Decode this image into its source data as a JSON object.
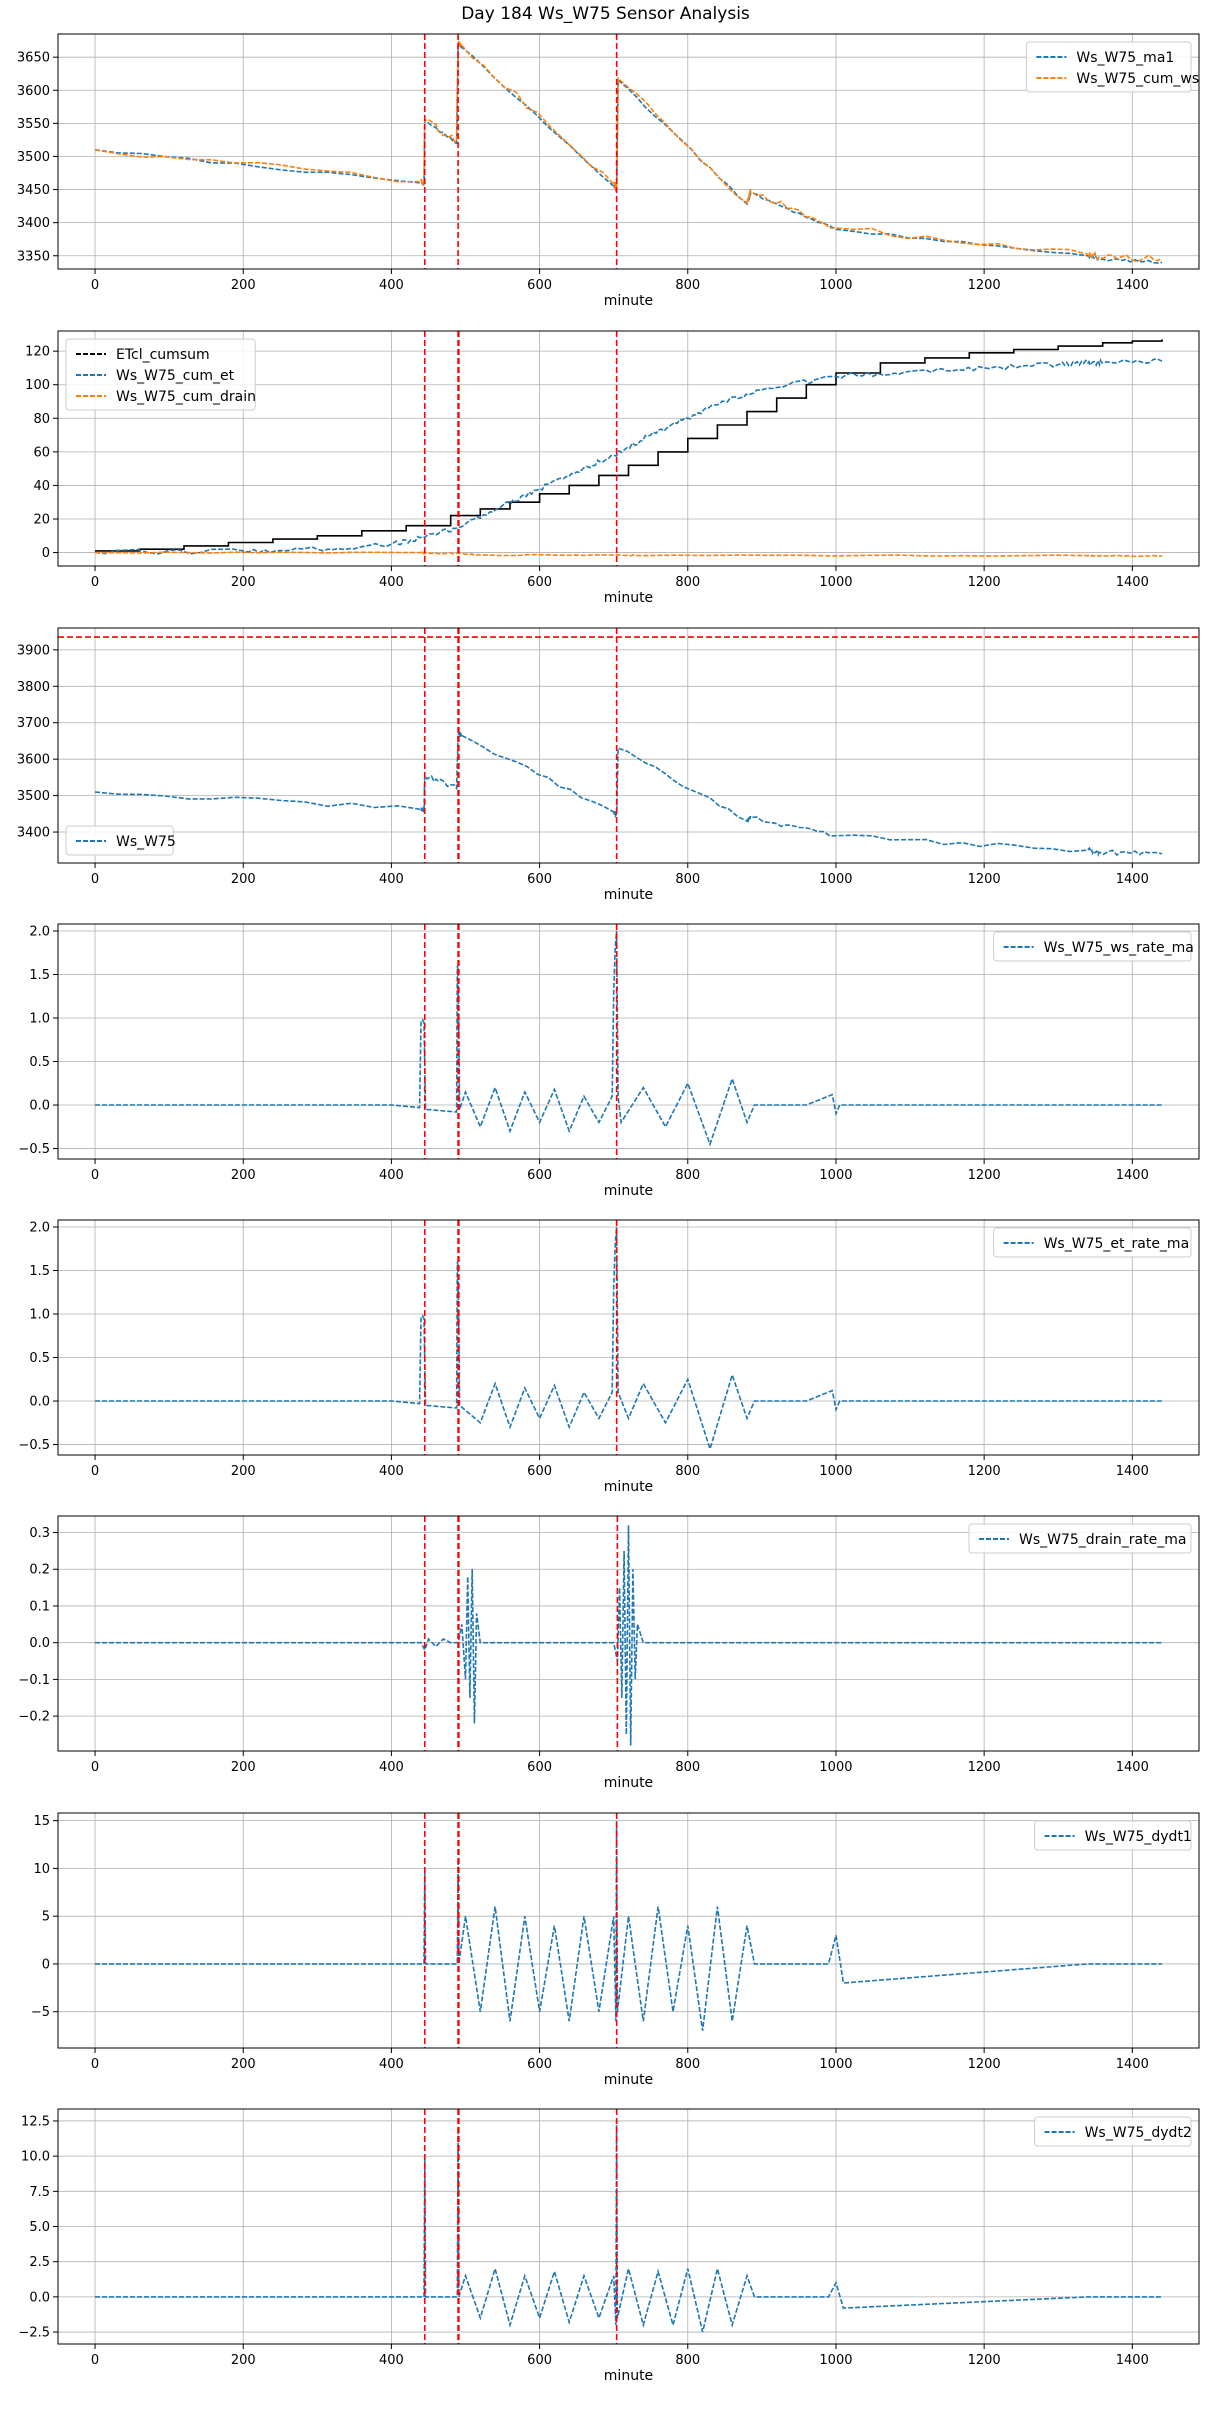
{
  "figure_title": "Day 184 Ws_W75 Sensor Analysis",
  "colors": {
    "blue": "#1f77b4",
    "orange": "#ff7f0e",
    "black": "#000000",
    "red": "#ff0000",
    "grid": "#b0b0b0"
  },
  "chart_data": [
    {
      "type": "line",
      "xlabel": "minute",
      "xlim": [
        -50,
        1490
      ],
      "ylim": [
        3330,
        3685
      ],
      "xticks": [
        0,
        200,
        400,
        600,
        800,
        1000,
        1200,
        1400
      ],
      "yticks": [
        3350,
        3400,
        3450,
        3500,
        3550,
        3600,
        3650
      ],
      "legend_loc": "top-right",
      "vlines": [
        445,
        490,
        704
      ],
      "hlines": [],
      "series": [
        {
          "name": "Ws_W75_ma1",
          "color": "#1f77b4",
          "noise": 2,
          "x": [
            0,
            440,
            444,
            445,
            488,
            490,
            495,
            700,
            704,
            706,
            880,
            885,
            1000,
            1340,
            1355,
            1440
          ],
          "y": [
            3510,
            3460,
            3458,
            3555,
            3520,
            3670,
            3665,
            3455,
            3450,
            3615,
            3428,
            3445,
            3390,
            3350,
            3345,
            3340
          ]
        },
        {
          "name": "Ws_W75_cum_ws",
          "color": "#ff7f0e",
          "noise": 5,
          "x": [
            0,
            440,
            444,
            445,
            488,
            490,
            495,
            700,
            704,
            706,
            880,
            885,
            1000,
            1340,
            1355,
            1440
          ],
          "y": [
            3510,
            3462,
            3460,
            3556,
            3522,
            3672,
            3668,
            3458,
            3452,
            3618,
            3430,
            3448,
            3392,
            3352,
            3348,
            3346
          ]
        }
      ]
    },
    {
      "type": "line",
      "xlabel": "minute",
      "xlim": [
        -50,
        1490
      ],
      "ylim": [
        -8,
        132
      ],
      "xticks": [
        0,
        200,
        400,
        600,
        800,
        1000,
        1200,
        1400
      ],
      "yticks": [
        0,
        20,
        40,
        60,
        80,
        100,
        120
      ],
      "legend_loc": "top-left",
      "vlines": [
        445,
        490,
        491,
        704
      ],
      "hlines": [],
      "series": [
        {
          "name": "ETcl_cumsum",
          "color": "#000000",
          "noise": 0,
          "step": true,
          "x": [
            0,
            60,
            120,
            180,
            240,
            300,
            360,
            420,
            480,
            520,
            560,
            600,
            640,
            680,
            720,
            760,
            800,
            840,
            880,
            920,
            960,
            1000,
            1060,
            1120,
            1180,
            1240,
            1300,
            1360,
            1400,
            1440
          ],
          "y": [
            1,
            2,
            4,
            6,
            8,
            10,
            13,
            16,
            22,
            26,
            30,
            35,
            40,
            46,
            52,
            60,
            68,
            76,
            84,
            92,
            100,
            107,
            113,
            116,
            119,
            121,
            123,
            125,
            126,
            127
          ]
        },
        {
          "name": "Ws_W75_cum_et",
          "color": "#1f77b4",
          "noise": 1.5,
          "x": [
            0,
            200,
            300,
            400,
            445,
            490,
            550,
            600,
            650,
            700,
            750,
            800,
            850,
            900,
            1000,
            1100,
            1200,
            1300,
            1340,
            1360,
            1440
          ],
          "y": [
            0,
            1,
            2,
            5,
            9,
            15,
            28,
            38,
            48,
            58,
            70,
            80,
            90,
            97,
            105,
            108,
            110,
            112,
            113,
            113,
            114
          ]
        },
        {
          "name": "Ws_W75_cum_drain",
          "color": "#ff7f0e",
          "noise": 0.3,
          "x": [
            0,
            440,
            445,
            490,
            520,
            700,
            740,
            1340,
            1360,
            1440
          ],
          "y": [
            0,
            0,
            -0.5,
            -0.5,
            -1.5,
            -1.5,
            -1.8,
            -1.8,
            -2,
            -2
          ]
        }
      ]
    },
    {
      "type": "line",
      "xlabel": "minute",
      "xlim": [
        -50,
        1490
      ],
      "ylim": [
        3315,
        3960
      ],
      "xticks": [
        0,
        200,
        400,
        600,
        800,
        1000,
        1200,
        1400
      ],
      "yticks": [
        3400,
        3500,
        3600,
        3700,
        3800,
        3900
      ],
      "legend_loc": "bottom-left",
      "vlines": [
        445,
        490,
        491,
        704
      ],
      "hlines": [
        3935
      ],
      "series": [
        {
          "name": "Ws_W75",
          "color": "#1f77b4",
          "noise": 7,
          "x": [
            0,
            440,
            444,
            445,
            488,
            490,
            495,
            700,
            704,
            706,
            880,
            885,
            1000,
            1340,
            1355,
            1440
          ],
          "y": [
            3510,
            3462,
            3460,
            3555,
            3520,
            3670,
            3665,
            3455,
            3450,
            3630,
            3430,
            3440,
            3390,
            3350,
            3345,
            3340
          ]
        }
      ]
    },
    {
      "type": "line",
      "xlabel": "minute",
      "xlim": [
        -50,
        1490
      ],
      "ylim": [
        -0.62,
        2.08
      ],
      "xticks": [
        0,
        200,
        400,
        600,
        800,
        1000,
        1200,
        1400
      ],
      "yticks": [
        -0.5,
        0.0,
        0.5,
        1.0,
        1.5,
        2.0
      ],
      "legend_loc": "top-right",
      "vlines": [
        445,
        490,
        491,
        704
      ],
      "hlines": [],
      "series": [
        {
          "name": "Ws_W75_ws_rate_ma",
          "color": "#1f77b4",
          "noise": 0,
          "x": [
            0,
            400,
            438,
            440,
            442,
            444,
            446,
            488,
            489,
            490,
            492,
            500,
            520,
            540,
            560,
            580,
            600,
            620,
            640,
            660,
            680,
            698,
            700,
            702,
            704,
            706,
            710,
            740,
            770,
            800,
            830,
            860,
            880,
            890,
            960,
            995,
            1000,
            1005,
            1340,
            1355,
            1440
          ],
          "y": [
            0,
            0,
            -0.03,
            0.95,
            0.98,
            0.95,
            -0.05,
            -0.08,
            1.6,
            1.55,
            -0.05,
            0.15,
            -0.25,
            0.2,
            -0.3,
            0.15,
            -0.2,
            0.18,
            -0.3,
            0.1,
            -0.2,
            0.1,
            1.3,
            1.8,
            2.0,
            0.1,
            -0.2,
            0.2,
            -0.25,
            0.25,
            -0.45,
            0.3,
            -0.2,
            0,
            0,
            0.12,
            -0.1,
            0,
            0,
            0,
            0
          ]
        }
      ]
    },
    {
      "type": "line",
      "xlabel": "minute",
      "xlim": [
        -50,
        1490
      ],
      "ylim": [
        -0.62,
        2.08
      ],
      "xticks": [
        0,
        200,
        400,
        600,
        800,
        1000,
        1200,
        1400
      ],
      "yticks": [
        -0.5,
        0.0,
        0.5,
        1.0,
        1.5,
        2.0
      ],
      "legend_loc": "top-right",
      "vlines": [
        445,
        490,
        491,
        704
      ],
      "hlines": [],
      "series": [
        {
          "name": "Ws_W75_et_rate_ma",
          "color": "#1f77b4",
          "noise": 0,
          "x": [
            0,
            400,
            438,
            440,
            442,
            444,
            446,
            488,
            489,
            490,
            492,
            520,
            540,
            560,
            580,
            600,
            620,
            640,
            660,
            680,
            698,
            700,
            702,
            704,
            706,
            720,
            740,
            770,
            800,
            830,
            860,
            880,
            890,
            960,
            995,
            1000,
            1005,
            1340,
            1355,
            1440
          ],
          "y": [
            0,
            0,
            -0.03,
            0.95,
            0.98,
            0.95,
            -0.05,
            -0.08,
            1.6,
            1.55,
            -0.05,
            -0.25,
            0.2,
            -0.3,
            0.15,
            -0.2,
            0.18,
            -0.3,
            0.1,
            -0.2,
            0.1,
            1.3,
            1.8,
            2.0,
            0.1,
            -0.2,
            0.2,
            -0.25,
            0.25,
            -0.55,
            0.3,
            -0.2,
            0,
            0,
            0.12,
            -0.1,
            0,
            0,
            0,
            0
          ]
        }
      ]
    },
    {
      "type": "line",
      "xlabel": "minute",
      "xlim": [
        -50,
        1490
      ],
      "ylim": [
        -0.295,
        0.345
      ],
      "xticks": [
        0,
        200,
        400,
        600,
        800,
        1000,
        1200,
        1400
      ],
      "yticks": [
        -0.2,
        -0.1,
        0.0,
        0.1,
        0.2,
        0.3
      ],
      "legend_loc": "top-right",
      "vlines": [
        445,
        490,
        491,
        705
      ],
      "hlines": [],
      "series": [
        {
          "name": "Ws_W75_drain_rate_ma",
          "color": "#1f77b4",
          "noise": 0,
          "x": [
            0,
            440,
            445,
            450,
            460,
            470,
            480,
            490,
            495,
            500,
            503,
            506,
            509,
            512,
            515,
            520,
            700,
            705,
            708,
            711,
            714,
            717,
            720,
            723,
            726,
            729,
            732,
            740,
            1340,
            1355,
            1440
          ],
          "y": [
            0,
            0,
            -0.02,
            0.01,
            -0.01,
            0.01,
            0,
            0,
            0.05,
            -0.1,
            0.18,
            -0.15,
            0.2,
            -0.22,
            0.08,
            0,
            0,
            -0.05,
            0.15,
            -0.15,
            0.25,
            -0.25,
            0.32,
            -0.28,
            0.2,
            -0.1,
            0.05,
            0,
            0,
            0,
            0
          ]
        }
      ]
    },
    {
      "type": "line",
      "xlabel": "minute",
      "xlim": [
        -50,
        1490
      ],
      "ylim": [
        -8.8,
        15.8
      ],
      "xticks": [
        0,
        200,
        400,
        600,
        800,
        1000,
        1200,
        1400
      ],
      "yticks": [
        -5,
        0,
        5,
        10,
        15
      ],
      "legend_loc": "top-right",
      "vlines": [
        445,
        490,
        491,
        704
      ],
      "hlines": [],
      "series": [
        {
          "name": "Ws_W75_dydt1",
          "color": "#1f77b4",
          "noise": 0,
          "x": [
            0,
            200,
            400,
            444,
            445,
            446,
            489,
            490,
            491,
            500,
            520,
            540,
            560,
            580,
            600,
            620,
            640,
            660,
            680,
            700,
            703,
            704,
            705,
            720,
            740,
            760,
            780,
            800,
            820,
            840,
            860,
            880,
            890,
            990,
            1000,
            1010,
            1340,
            1355,
            1440
          ],
          "y": [
            0,
            0,
            0,
            0,
            10,
            0,
            0,
            11,
            0,
            5,
            -5,
            6,
            -6,
            5,
            -5,
            4,
            -6,
            5,
            -5,
            5,
            -6,
            15,
            -5,
            5,
            -6,
            6,
            -5,
            4,
            -7,
            6,
            -6,
            4,
            0,
            0,
            3,
            -2,
            0,
            0,
            0
          ]
        }
      ]
    },
    {
      "type": "line",
      "xlabel": "minute",
      "xlim": [
        -50,
        1490
      ],
      "ylim": [
        -3.35,
        13.35
      ],
      "xticks": [
        0,
        200,
        400,
        600,
        800,
        1000,
        1200,
        1400
      ],
      "yticks": [
        -2.5,
        0.0,
        2.5,
        5.0,
        7.5,
        10.0,
        12.5
      ],
      "legend_loc": "top-right",
      "vlines": [
        445,
        490,
        491,
        704
      ],
      "hlines": [],
      "series": [
        {
          "name": "Ws_W75_dydt2",
          "color": "#1f77b4",
          "noise": 0,
          "x": [
            0,
            200,
            400,
            444,
            445,
            446,
            489,
            490,
            491,
            500,
            520,
            540,
            560,
            580,
            600,
            620,
            640,
            660,
            680,
            700,
            703,
            704,
            705,
            720,
            740,
            760,
            780,
            800,
            820,
            840,
            860,
            880,
            890,
            990,
            1000,
            1010,
            1340,
            1355,
            1440
          ],
          "y": [
            0,
            0,
            0,
            0,
            10,
            0,
            0,
            12,
            0,
            1.5,
            -1.5,
            2,
            -2,
            1.5,
            -1.5,
            1.8,
            -1.8,
            1.5,
            -1.5,
            1.5,
            -2,
            12.5,
            -1.5,
            2,
            -2,
            1.8,
            -2,
            2,
            -2.5,
            2,
            -2,
            1.5,
            0,
            0,
            1,
            -0.8,
            0,
            0,
            0
          ]
        }
      ]
    }
  ]
}
